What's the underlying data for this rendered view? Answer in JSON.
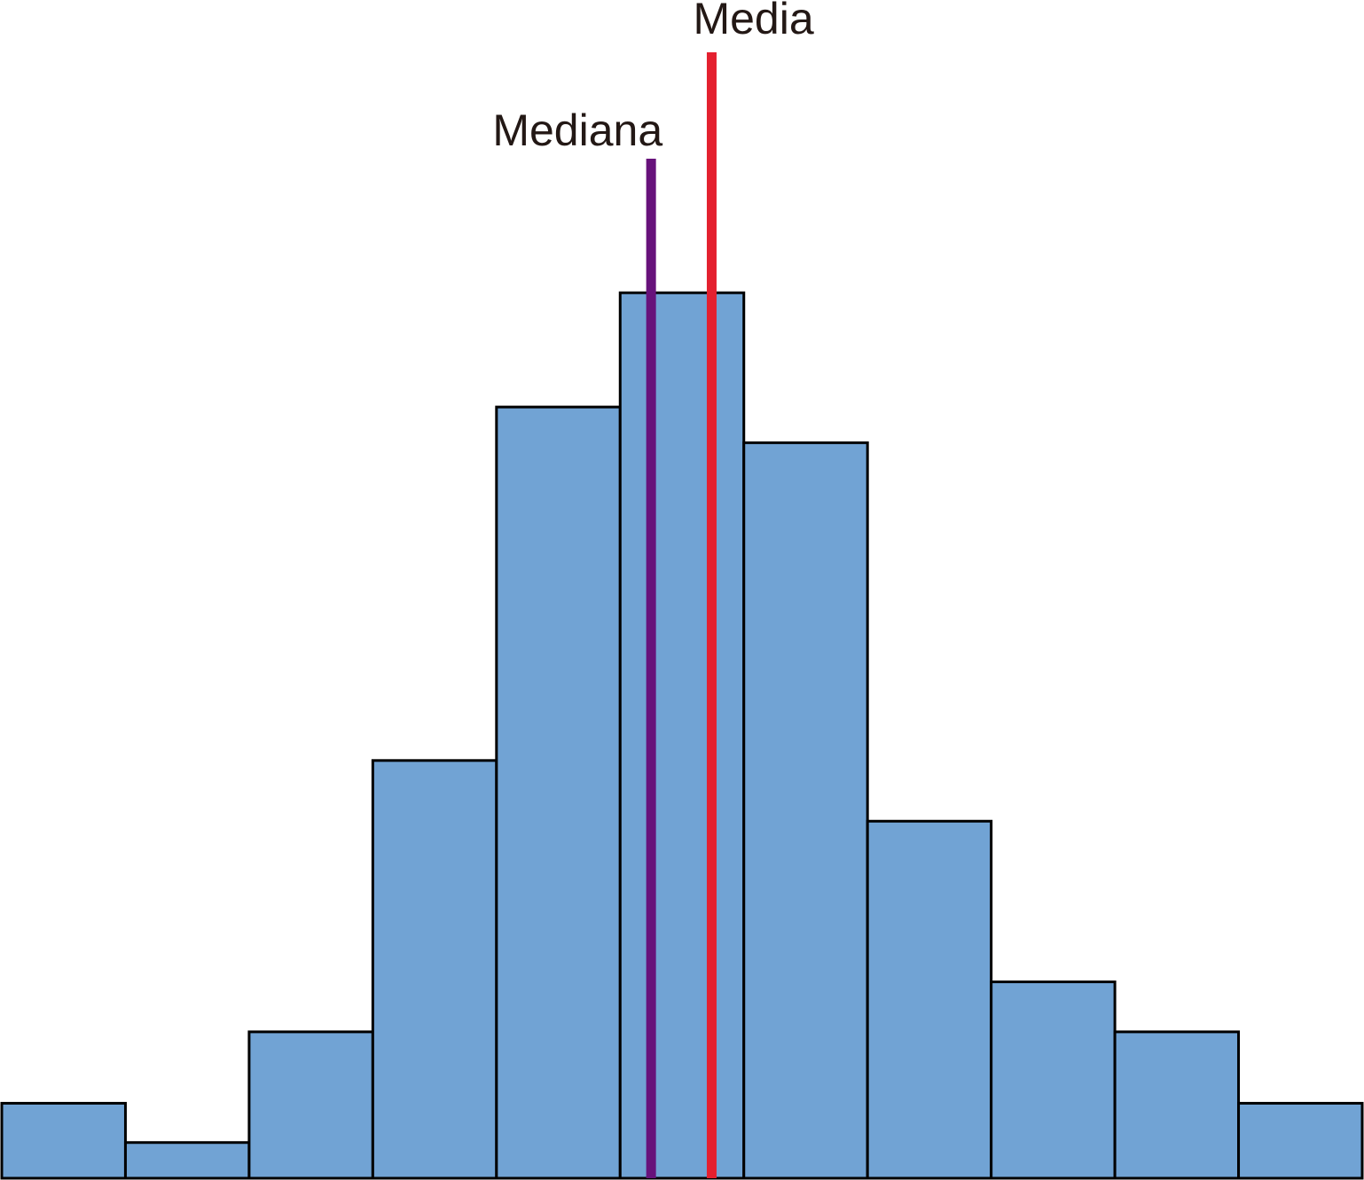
{
  "chart_data": {
    "type": "bar",
    "title": "",
    "xlabel": "",
    "ylabel": "",
    "bins": 11,
    "values": [
      2.1,
      1.0,
      4.1,
      11.7,
      21.6,
      24.8,
      20.6,
      10.0,
      5.5,
      4.1,
      2.1
    ],
    "ylim": [
      0,
      33
    ],
    "bar_color": "#71a3d4",
    "edge_color": "#000000",
    "grid": false,
    "axes_visible": false,
    "markers": [
      {
        "key": "median",
        "label": "Mediana",
        "bin_position": 5.25,
        "color": "#67127b"
      },
      {
        "key": "mean",
        "label": "Media",
        "bin_position": 5.74,
        "color": "#e4202f"
      }
    ]
  }
}
